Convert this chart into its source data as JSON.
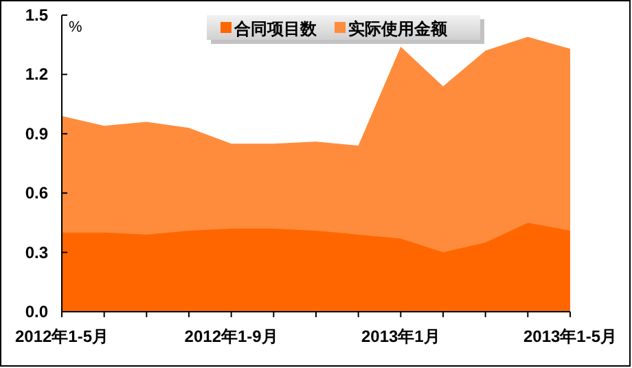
{
  "chart_data": {
    "type": "area",
    "ylabel": "%",
    "categories": [
      "2012年1-5月",
      null,
      null,
      null,
      "2012年1-9月",
      null,
      null,
      null,
      "2013年1月",
      null,
      null,
      null,
      "2013年1-5月"
    ],
    "series": [
      {
        "name": "合同项目数",
        "color": "#ff6600",
        "values": [
          0.4,
          0.4,
          0.39,
          0.41,
          0.42,
          0.42,
          0.41,
          0.39,
          0.37,
          0.3,
          0.35,
          0.45,
          0.41
        ]
      },
      {
        "name": "实际使用金额",
        "color": "#ff8c3c",
        "values": [
          0.99,
          0.94,
          0.96,
          0.93,
          0.85,
          0.85,
          0.86,
          0.84,
          1.34,
          1.14,
          1.32,
          1.39,
          1.33
        ]
      }
    ],
    "ylim": [
      0,
      1.5
    ],
    "yticks": [
      {
        "value": 0,
        "label": "0.0"
      },
      0.3,
      0.6,
      0.9,
      1.2,
      1.5
    ],
    "legend": "top",
    "grid": false
  }
}
